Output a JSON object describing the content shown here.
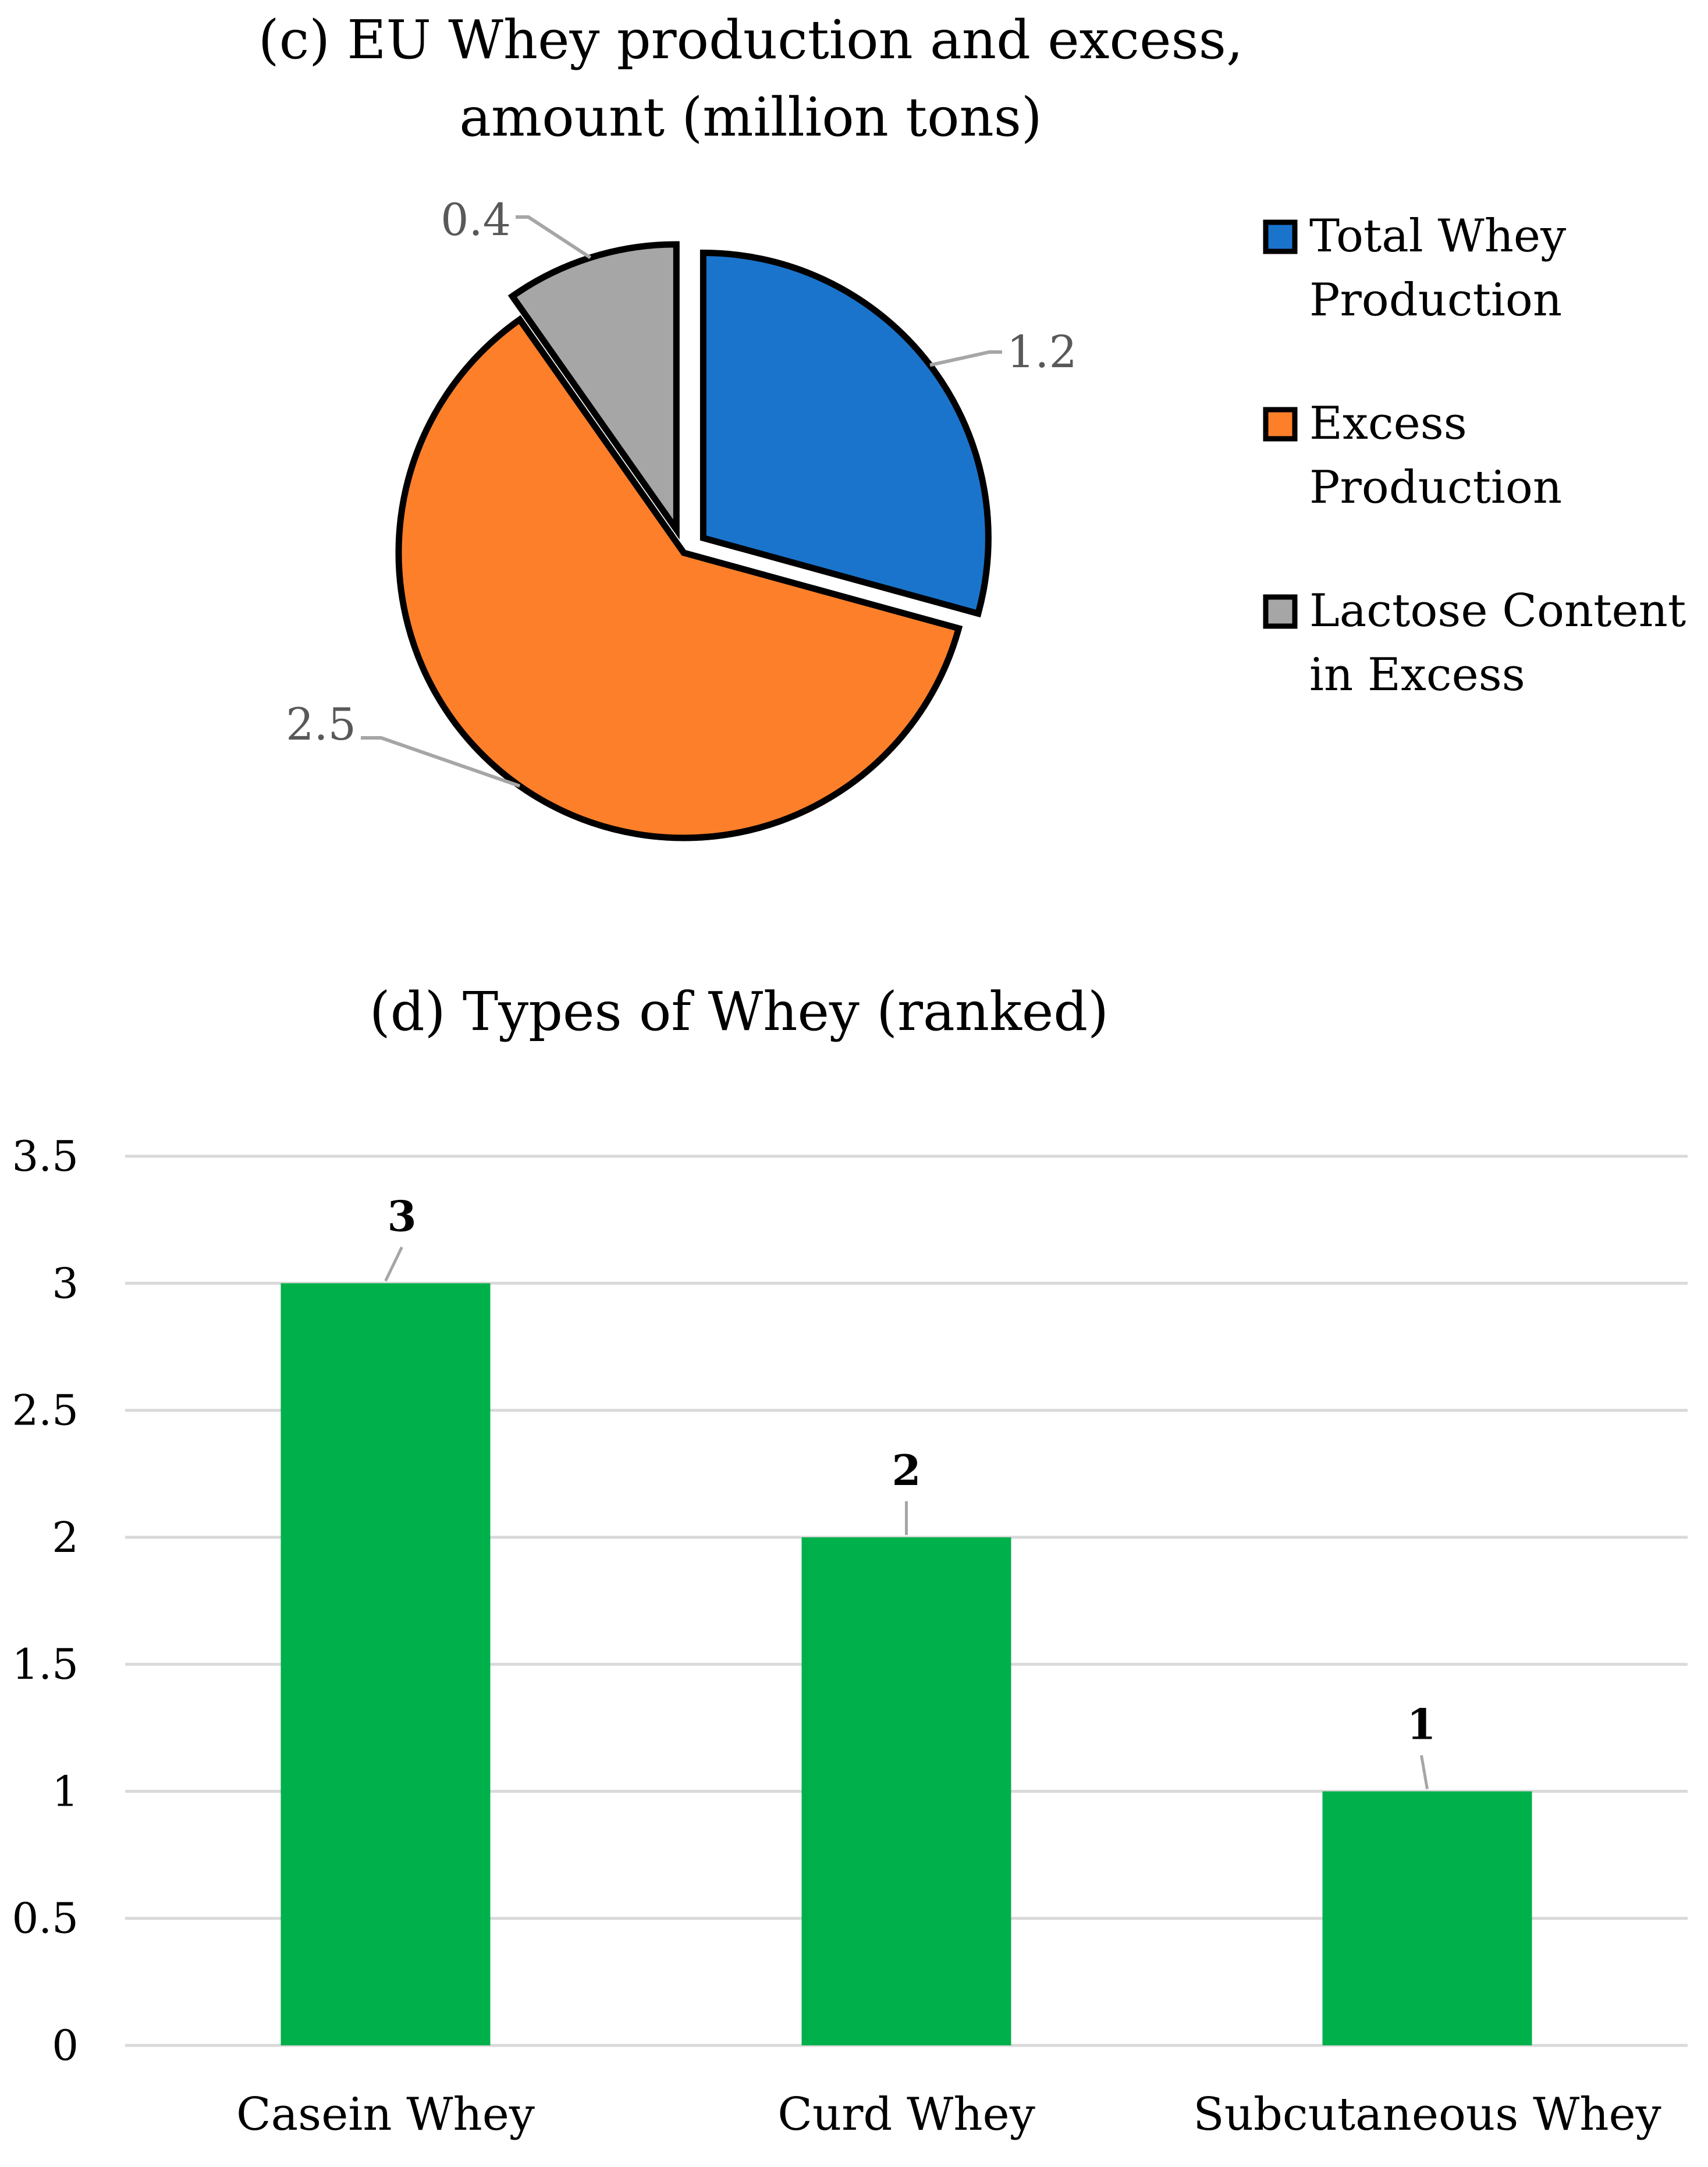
{
  "chart_data": [
    {
      "type": "pie",
      "title": "(c) EU Whey production and excess, amount (million tons)",
      "title_lines": [
        "(c) EU Whey production and excess,",
        "amount (million tons)"
      ],
      "legend_position": "right",
      "exploded": true,
      "slices": [
        {
          "name": "Total Whey Production",
          "legend_lines": [
            "Total Whey",
            "Production"
          ],
          "value": 1.2,
          "label": "1.2",
          "color": "#1a74cc"
        },
        {
          "name": "Excess Production",
          "legend_lines": [
            "Excess",
            "Production"
          ],
          "value": 2.5,
          "label": "2.5",
          "color": "#fd7f2a"
        },
        {
          "name": "Lactose Content in Excess",
          "legend_lines": [
            "Lactose Content",
            "in Excess"
          ],
          "value": 0.4,
          "label": "0.4",
          "color": "#a6a6a6"
        }
      ]
    },
    {
      "type": "bar",
      "title": "(d) Types of Whey (ranked)",
      "categories": [
        "Casein Whey",
        "Curd Whey",
        "Subcutaneous Whey"
      ],
      "values": [
        3,
        2,
        1
      ],
      "value_labels": [
        "3",
        "2",
        "1"
      ],
      "color": "#00b04b",
      "ylim": [
        0,
        3.5
      ],
      "yticks": [
        "0",
        "0.5",
        "1",
        "1.5",
        "2",
        "2.5",
        "3",
        "3.5"
      ],
      "grid": true,
      "xlabel": "",
      "ylabel": ""
    }
  ]
}
